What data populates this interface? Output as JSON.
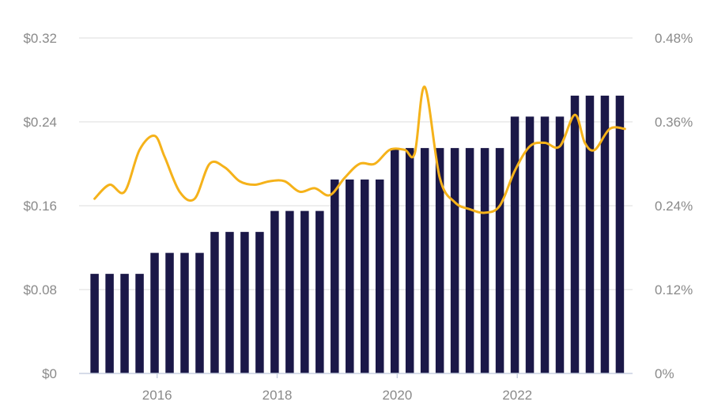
{
  "chart_data": {
    "type": "bar+line",
    "title": "",
    "xlabel": "",
    "ylabel_left": "",
    "ylabel_right": "",
    "x_ticks": [
      "2016",
      "2018",
      "2020",
      "2022"
    ],
    "y_left_ticks": [
      "$0",
      "$0.08",
      "$0.16",
      "$0.24",
      "$0.32"
    ],
    "y_right_ticks": [
      "0%",
      "0.12%",
      "0.24%",
      "0.36%",
      "0.48%"
    ],
    "y_left_range": [
      0,
      0.32
    ],
    "y_right_range": [
      0,
      0.48
    ],
    "grid": true,
    "colors": {
      "bars": "#1b1848",
      "line": "#f5b21a",
      "grid": "#e4e4e4",
      "text": "#8a8a8a"
    },
    "bars": {
      "dates": [
        "2014-12",
        "2015-03",
        "2015-06",
        "2015-09",
        "2015-12",
        "2016-03",
        "2016-06",
        "2016-09",
        "2016-12",
        "2017-03",
        "2017-06",
        "2017-09",
        "2017-12",
        "2018-03",
        "2018-06",
        "2018-09",
        "2018-12",
        "2019-03",
        "2019-06",
        "2019-09",
        "2019-12",
        "2020-03",
        "2020-06",
        "2020-09",
        "2020-12",
        "2021-03",
        "2021-06",
        "2021-09",
        "2021-12",
        "2022-03",
        "2022-06",
        "2022-09",
        "2022-12",
        "2023-03",
        "2023-06",
        "2023-09"
      ],
      "values": [
        0.095,
        0.095,
        0.095,
        0.095,
        0.115,
        0.115,
        0.115,
        0.115,
        0.135,
        0.135,
        0.135,
        0.135,
        0.155,
        0.155,
        0.155,
        0.155,
        0.185,
        0.185,
        0.185,
        0.185,
        0.215,
        0.215,
        0.215,
        0.215,
        0.215,
        0.215,
        0.215,
        0.215,
        0.245,
        0.245,
        0.245,
        0.245,
        0.265,
        0.265,
        0.265,
        0.265
      ]
    },
    "line": {
      "dates": [
        "2014-12",
        "2015-03",
        "2015-06",
        "2015-09",
        "2015-12",
        "2016-02",
        "2016-05",
        "2016-08",
        "2016-11",
        "2017-02",
        "2017-05",
        "2017-08",
        "2017-11",
        "2018-02",
        "2018-05",
        "2018-08",
        "2018-11",
        "2019-02",
        "2019-05",
        "2019-08",
        "2019-11",
        "2020-02",
        "2020-04",
        "2020-06",
        "2020-09",
        "2020-12",
        "2021-03",
        "2021-06",
        "2021-09",
        "2021-12",
        "2022-03",
        "2022-06",
        "2022-09",
        "2022-12",
        "2023-02",
        "2023-04",
        "2023-07",
        "2023-10"
      ],
      "values": [
        0.25,
        0.27,
        0.26,
        0.32,
        0.34,
        0.31,
        0.26,
        0.25,
        0.3,
        0.295,
        0.275,
        0.27,
        0.275,
        0.275,
        0.26,
        0.265,
        0.255,
        0.28,
        0.3,
        0.3,
        0.32,
        0.32,
        0.315,
        0.41,
        0.28,
        0.245,
        0.235,
        0.23,
        0.24,
        0.29,
        0.325,
        0.33,
        0.325,
        0.37,
        0.33,
        0.32,
        0.35,
        0.35
      ]
    }
  }
}
